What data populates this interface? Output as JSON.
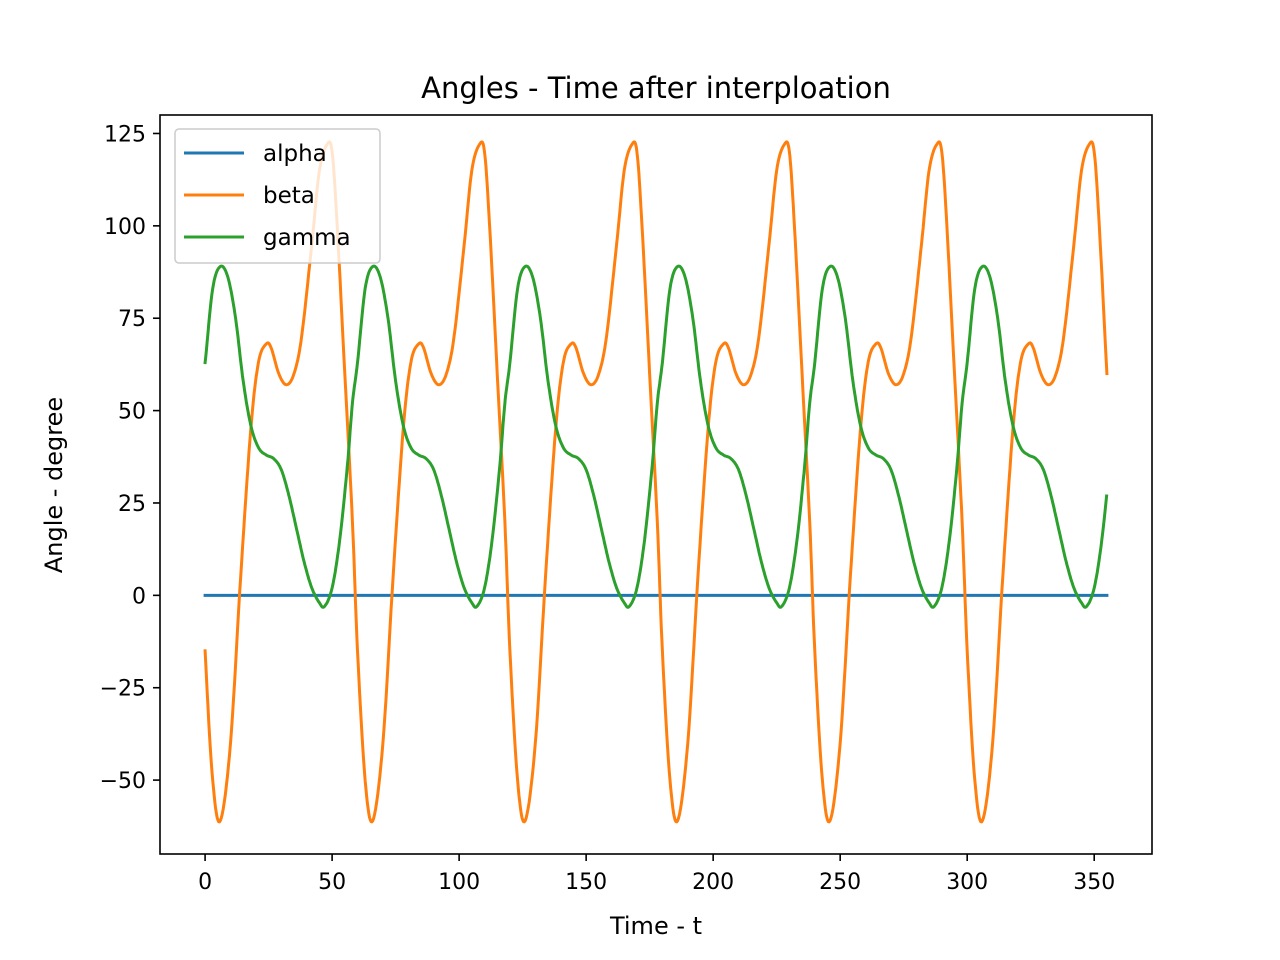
{
  "chart_data": {
    "type": "line",
    "title": "Angles - Time after interploation",
    "xlabel": "Time - t",
    "ylabel": "Angle - degree",
    "xlim": [
      -17.75,
      372.75
    ],
    "ylim": [
      -70,
      130
    ],
    "xticks": [
      0,
      50,
      100,
      150,
      200,
      250,
      300,
      350
    ],
    "xtick_labels": [
      "0",
      "50",
      "100",
      "150",
      "200",
      "250",
      "300",
      "350"
    ],
    "yticks": [
      -50,
      -25,
      0,
      25,
      50,
      75,
      100,
      125
    ],
    "ytick_labels": [
      "−50",
      "−25",
      "0",
      "25",
      "50",
      "75",
      "100",
      "125"
    ],
    "grid": false,
    "legend_position": "upper-left",
    "series": [
      {
        "name": "alpha",
        "color": "#1f77b4",
        "points": [
          [
            0,
            0
          ],
          [
            355,
            0
          ]
        ]
      },
      {
        "name": "beta",
        "color": "#ff7f0e",
        "period": 60,
        "x_end": 355,
        "cycle_points": [
          [
            0,
            -15
          ],
          [
            3,
            -50
          ],
          [
            6,
            -61
          ],
          [
            10,
            -40
          ],
          [
            14,
            5
          ],
          [
            18,
            45
          ],
          [
            21,
            63
          ],
          [
            24,
            68
          ],
          [
            26,
            67
          ],
          [
            29,
            60
          ],
          [
            32,
            57
          ],
          [
            35,
            60
          ],
          [
            38,
            70
          ],
          [
            42,
            95
          ],
          [
            45,
            115
          ],
          [
            48,
            122
          ],
          [
            50,
            120
          ],
          [
            52,
            100
          ],
          [
            55,
            60
          ],
          [
            58,
            20
          ],
          [
            60,
            -15
          ]
        ]
      },
      {
        "name": "gamma",
        "color": "#2ca02c",
        "period": 60,
        "x_end": 355,
        "cycle_points": [
          [
            0,
            63
          ],
          [
            3,
            83
          ],
          [
            6,
            89
          ],
          [
            9,
            86
          ],
          [
            12,
            75
          ],
          [
            15,
            58
          ],
          [
            18,
            46
          ],
          [
            21,
            40
          ],
          [
            24,
            38
          ],
          [
            27,
            37
          ],
          [
            30,
            34
          ],
          [
            33,
            27
          ],
          [
            36,
            18
          ],
          [
            39,
            9
          ],
          [
            42,
            2
          ],
          [
            45,
            -2
          ],
          [
            47,
            -3
          ],
          [
            50,
            2
          ],
          [
            53,
            15
          ],
          [
            56,
            35
          ],
          [
            58,
            52
          ],
          [
            60,
            63
          ]
        ]
      }
    ]
  }
}
